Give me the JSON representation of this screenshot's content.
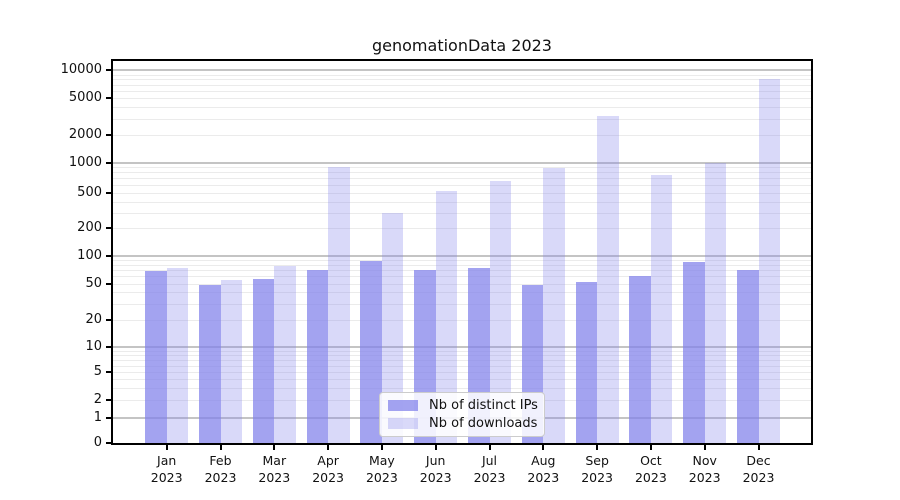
{
  "chart_data": {
    "type": "bar",
    "title": "genomationData 2023",
    "categories": [
      "Jan 2023",
      "Feb 2023",
      "Mar 2023",
      "Apr 2023",
      "May 2023",
      "Jun 2023",
      "Jul 2023",
      "Aug 2023",
      "Sep 2023",
      "Oct 2023",
      "Nov 2023",
      "Dec 2023"
    ],
    "x_tick_top": [
      "Jan",
      "Feb",
      "Mar",
      "Apr",
      "May",
      "Jun",
      "Jul",
      "Aug",
      "Sep",
      "Oct",
      "Nov",
      "Dec"
    ],
    "x_tick_bottom": "2023",
    "series": [
      {
        "name": "Nb of distinct IPs",
        "color": "rgba(128,128,234,0.72)",
        "values": [
          68,
          48,
          56,
          70,
          88,
          70,
          73,
          48,
          52,
          61,
          86,
          70
        ]
      },
      {
        "name": "Nb of downloads",
        "color": "rgba(128,128,234,0.30)",
        "values": [
          73,
          55,
          78,
          900,
          300,
          530,
          660,
          880,
          3200,
          750,
          980,
          8100
        ]
      }
    ],
    "y_ticks": [
      0,
      1,
      2,
      5,
      10,
      20,
      50,
      100,
      200,
      500,
      1000,
      2000,
      5000,
      10000
    ],
    "y_scale": "pseudo-log (logarithmic above 1, compressed segment 0-1)",
    "ylim": [
      0,
      13000
    ],
    "grid": {
      "orientation": "horizontal",
      "major_color": "#c4c4c4",
      "minor_color": "#ebebeb"
    },
    "legend": {
      "position": "bottom-center"
    }
  }
}
